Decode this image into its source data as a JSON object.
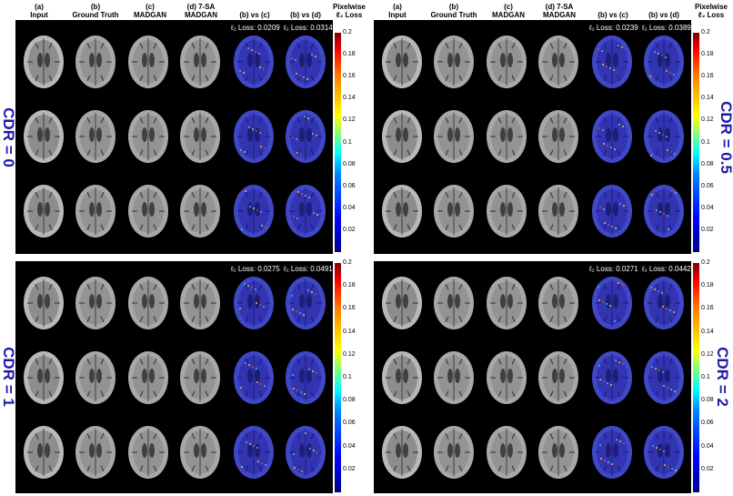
{
  "column_headers": {
    "a": [
      "(a)",
      "Input"
    ],
    "b": [
      "(b)",
      "Ground Truth"
    ],
    "c": [
      "(c)",
      "MADGAN"
    ],
    "d": [
      "(d) 7-SA",
      "MADGAN"
    ],
    "e": [
      "(b) vs (c)"
    ],
    "f": [
      "(b) vs (d)"
    ]
  },
  "colorbar_title": [
    "Pixelwise",
    "ℓ₂ Loss"
  ],
  "colorbar_ticks": [
    "0.2",
    "0.18",
    "0.16",
    "0.14",
    "0.12",
    "0.1",
    "0.08",
    "0.06",
    "0.04",
    "0.02"
  ],
  "panels": [
    {
      "cdr": "CDR = 0",
      "loss_c": "ℓ₂ Loss: 0.0209",
      "loss_d": "ℓ₂ Loss: 0.0314"
    },
    {
      "cdr": "CDR = 0.5",
      "loss_c": "ℓ₂ Loss: 0.0239",
      "loss_d": "ℓ₂ Loss: 0.0389"
    },
    {
      "cdr": "CDR = 1",
      "loss_c": "ℓ₂ Loss: 0.0275",
      "loss_d": "ℓ₂ Loss: 0.0491"
    },
    {
      "cdr": "CDR = 2",
      "loss_c": "ℓ₂ Loss: 0.0271",
      "loss_d": "ℓ₂ Loss: 0.0442"
    }
  ],
  "colors": {
    "cdr_label": "#1a1aa8",
    "panel_bg": "#000000",
    "loss_overlay": "#3a3ad0"
  }
}
